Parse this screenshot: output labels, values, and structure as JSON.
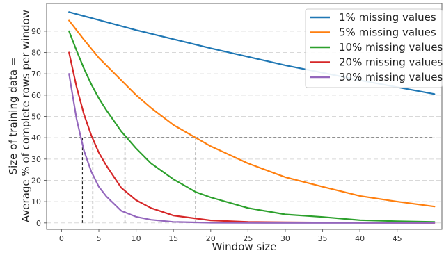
{
  "chart_data": {
    "type": "line",
    "xlabel": "Window size",
    "ylabel_lines": [
      "Size of training data =",
      "Average % of complete rows per window"
    ],
    "xlim": [
      -2,
      51
    ],
    "ylim": [
      -3,
      103
    ],
    "xticks": [
      0,
      5,
      10,
      15,
      20,
      25,
      30,
      35,
      40,
      45
    ],
    "yticks": [
      0,
      10,
      20,
      30,
      40,
      50,
      60,
      70,
      80,
      90
    ],
    "grid": "horizontal-dashed",
    "legend_position": "top-right",
    "reference_line": {
      "y": 40,
      "x_range": [
        1,
        50
      ],
      "drop_lines_x": [
        2.8,
        4.2,
        8.5,
        18.0
      ]
    },
    "series": [
      {
        "name": "1% missing values",
        "color": "#1f77b4",
        "points": [
          [
            1,
            99
          ],
          [
            10,
            90.5
          ],
          [
            20,
            82
          ],
          [
            30,
            74
          ],
          [
            40,
            67
          ],
          [
            50,
            60.5
          ]
        ]
      },
      {
        "name": "5% missing values",
        "color": "#ff7f0e",
        "points": [
          [
            1,
            95
          ],
          [
            3,
            86
          ],
          [
            5,
            77.5
          ],
          [
            8,
            67
          ],
          [
            10,
            60
          ],
          [
            12,
            54
          ],
          [
            15,
            46
          ],
          [
            18,
            40
          ],
          [
            20,
            36
          ],
          [
            25,
            28
          ],
          [
            30,
            21.5
          ],
          [
            35,
            17
          ],
          [
            40,
            12.7
          ],
          [
            45,
            10
          ],
          [
            50,
            7.7
          ]
        ]
      },
      {
        "name": "10% missing values",
        "color": "#2ca02c",
        "points": [
          [
            1,
            90
          ],
          [
            2,
            81
          ],
          [
            3,
            72.5
          ],
          [
            4,
            65
          ],
          [
            5,
            58.5
          ],
          [
            6,
            53
          ],
          [
            8,
            43
          ],
          [
            10,
            35
          ],
          [
            12,
            28
          ],
          [
            15,
            20.5
          ],
          [
            18,
            14.5
          ],
          [
            20,
            12
          ],
          [
            25,
            7
          ],
          [
            30,
            4
          ],
          [
            35,
            2.8
          ],
          [
            40,
            1.3
          ],
          [
            45,
            0.8
          ],
          [
            50,
            0.5
          ]
        ]
      },
      {
        "name": "20% missing values",
        "color": "#d62728",
        "points": [
          [
            1,
            80
          ],
          [
            2,
            64
          ],
          [
            3,
            51
          ],
          [
            4,
            41
          ],
          [
            5,
            33
          ],
          [
            6,
            27
          ],
          [
            8,
            16.5
          ],
          [
            10,
            10.7
          ],
          [
            12,
            7
          ],
          [
            15,
            3.5
          ],
          [
            20,
            1.2
          ],
          [
            25,
            0.5
          ],
          [
            30,
            0.3
          ],
          [
            40,
            0.1
          ],
          [
            50,
            0
          ]
        ]
      },
      {
        "name": "30% missing values",
        "color": "#9467bd",
        "points": [
          [
            1,
            70
          ],
          [
            2,
            49
          ],
          [
            3,
            34
          ],
          [
            4,
            24
          ],
          [
            5,
            17
          ],
          [
            6,
            12.5
          ],
          [
            8,
            5.7
          ],
          [
            10,
            2.9
          ],
          [
            12,
            1.5
          ],
          [
            15,
            0.5
          ],
          [
            20,
            0.1
          ],
          [
            30,
            0
          ],
          [
            40,
            0
          ],
          [
            50,
            0
          ]
        ]
      }
    ]
  }
}
